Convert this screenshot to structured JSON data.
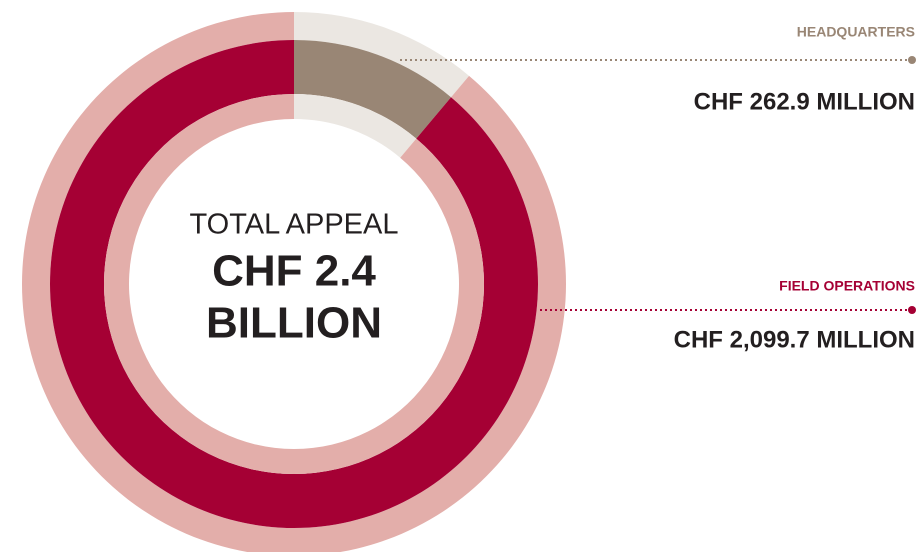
{
  "chart_data": {
    "type": "donut",
    "categories": [
      "HEADQUARTERS",
      "FIELD OPERATIONS"
    ],
    "values": [
      262.9,
      2099.7
    ],
    "value_labels": [
      "CHF 262.9 MILLION",
      "CHF 2,099.7 MILLION"
    ],
    "colors": [
      "#998675",
      "#a50034"
    ],
    "light_colors": [
      "#ebe7e2",
      "#e3aeaa"
    ],
    "center_title": "TOTAL APPEAL",
    "center_value": [
      "CHF 2.4",
      "BILLION"
    ]
  }
}
